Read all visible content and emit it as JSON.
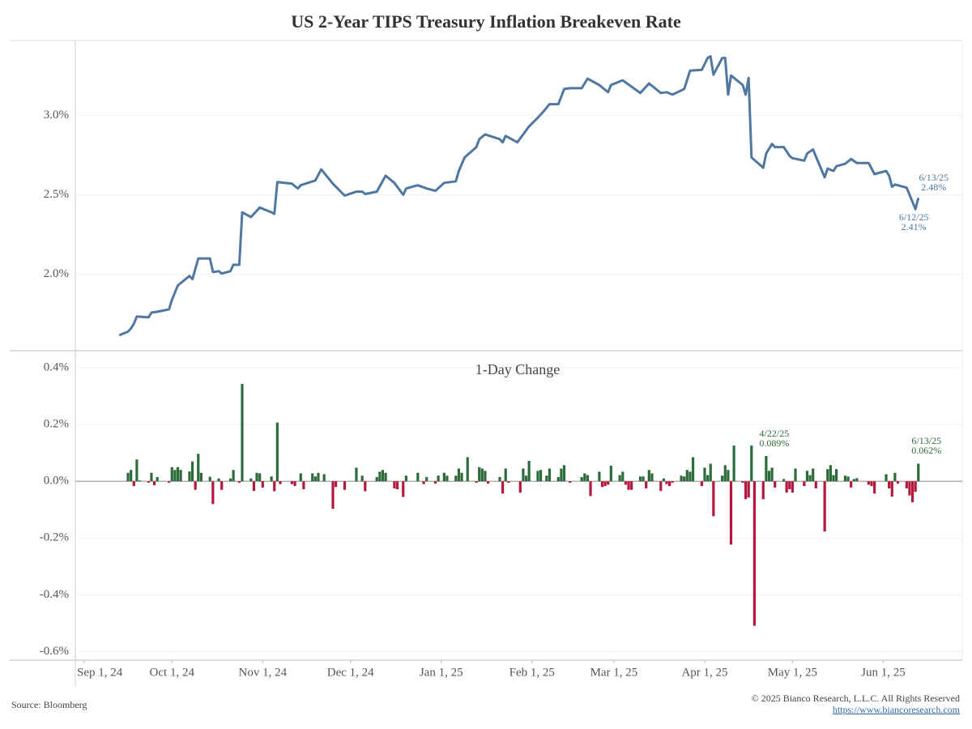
{
  "title": "US 2-Year TIPS Treasury Inflation Breakeven Rate",
  "source": "Source: Bloomberg",
  "copyright": "© 2025 Bianco Research, L.L.C. All Rights Reserved",
  "url": "https://www.biancoresearch.com",
  "chart_data": [
    {
      "type": "line",
      "color": "#4f77a0",
      "xlim": [
        "2024-08-29",
        "2025-06-28"
      ],
      "ylim": [
        1.52,
        3.47
      ],
      "yticks": [
        {
          "value": 2,
          "label": "2.0%"
        },
        {
          "value": 2.5,
          "label": "2.5%"
        },
        {
          "value": 3,
          "label": "3.0%"
        }
      ],
      "grid": true,
      "x": [
        "2024-09-13",
        "2024-09-16",
        "2024-09-17",
        "2024-09-18",
        "2024-09-19",
        "2024-09-23",
        "2024-09-24",
        "2024-09-26",
        "2024-09-30",
        "2024-10-01",
        "2024-10-03",
        "2024-10-07",
        "2024-10-08",
        "2024-10-10",
        "2024-10-14",
        "2024-10-15",
        "2024-10-17",
        "2024-10-18",
        "2024-10-21",
        "2024-10-22",
        "2024-10-24",
        "2024-10-25",
        "2024-10-28",
        "2024-10-31",
        "2024-11-04",
        "2024-11-05",
        "2024-11-06",
        "2024-11-11",
        "2024-11-13",
        "2024-11-14",
        "2024-11-19",
        "2024-11-21",
        "2024-11-25",
        "2024-11-29",
        "2024-12-03",
        "2024-12-05",
        "2024-12-06",
        "2024-12-10",
        "2024-12-13",
        "2024-12-16",
        "2024-12-19",
        "2024-12-20",
        "2024-12-24",
        "2024-12-27",
        "2024-12-30",
        "2025-01-02",
        "2025-01-06",
        "2025-01-07",
        "2025-01-09",
        "2025-01-13",
        "2025-01-14",
        "2025-01-16",
        "2025-01-21",
        "2025-01-22",
        "2025-01-23",
        "2025-01-27",
        "2025-01-31",
        "2025-02-03",
        "2025-02-05",
        "2025-02-07",
        "2025-02-10",
        "2025-02-12",
        "2025-02-14",
        "2025-02-18",
        "2025-02-20",
        "2025-02-24",
        "2025-02-27",
        "2025-02-28",
        "2025-03-04",
        "2025-03-10",
        "2025-03-13",
        "2025-03-17",
        "2025-03-19",
        "2025-03-21",
        "2025-03-25",
        "2025-03-27",
        "2025-03-31",
        "2025-04-02",
        "2025-04-03",
        "2025-04-04",
        "2025-04-07",
        "2025-04-08",
        "2025-04-09",
        "2025-04-10",
        "2025-04-14",
        "2025-04-15",
        "2025-04-16",
        "2025-04-17",
        "2025-04-21",
        "2025-04-22",
        "2025-04-24",
        "2025-04-25",
        "2025-04-28",
        "2025-04-30",
        "2025-05-01",
        "2025-05-05",
        "2025-05-06",
        "2025-05-08",
        "2025-05-12",
        "2025-05-13",
        "2025-05-15",
        "2025-05-16",
        "2025-05-19",
        "2025-05-21",
        "2025-05-23",
        "2025-05-27",
        "2025-05-29",
        "2025-06-02",
        "2025-06-03",
        "2025-06-04",
        "2025-06-05",
        "2025-06-09",
        "2025-06-12",
        "2025-06-13"
      ],
      "values": [
        1.617,
        1.64,
        1.66,
        1.69,
        1.735,
        1.73,
        1.76,
        1.765,
        1.78,
        1.84,
        1.93,
        1.99,
        1.97,
        2.1,
        2.1,
        2.015,
        2.02,
        2.005,
        2.02,
        2.06,
        2.06,
        2.39,
        2.36,
        2.42,
        2.39,
        2.38,
        2.58,
        2.57,
        2.54,
        2.56,
        2.59,
        2.66,
        2.57,
        2.495,
        2.52,
        2.52,
        2.505,
        2.52,
        2.62,
        2.575,
        2.5,
        2.54,
        2.56,
        2.54,
        2.525,
        2.575,
        2.585,
        2.65,
        2.735,
        2.8,
        2.85,
        2.88,
        2.85,
        2.83,
        2.87,
        2.83,
        2.93,
        2.985,
        3.025,
        3.07,
        3.07,
        3.165,
        3.17,
        3.17,
        3.23,
        3.19,
        3.145,
        3.19,
        3.22,
        3.14,
        3.2,
        3.14,
        3.145,
        3.13,
        3.165,
        3.28,
        3.285,
        3.36,
        3.37,
        3.255,
        3.36,
        3.36,
        3.13,
        3.25,
        3.19,
        3.13,
        3.235,
        2.735,
        2.67,
        2.76,
        2.82,
        2.8,
        2.8,
        2.745,
        2.73,
        2.715,
        2.76,
        2.785,
        2.61,
        2.665,
        2.65,
        2.68,
        2.695,
        2.725,
        2.7,
        2.7,
        2.63,
        2.65,
        2.62,
        2.55,
        2.565,
        2.545,
        2.41,
        2.48
      ],
      "annotations": [
        {
          "date": "6/13/25",
          "label": "2.48%"
        },
        {
          "date": "6/12/25",
          "label": "2.41%"
        }
      ]
    },
    {
      "type": "bar",
      "title": "1-Day Change",
      "up_color": "#2e6b3a",
      "down_color": "#b5183e",
      "xlim": [
        "2024-08-29",
        "2025-06-28"
      ],
      "xticks": [
        {
          "value": "2024-09-01",
          "label": "Sep 1, 24"
        },
        {
          "value": "2024-10-01",
          "label": "Oct 1, 24"
        },
        {
          "value": "2024-11-01",
          "label": "Nov 1, 24"
        },
        {
          "value": "2024-12-01",
          "label": "Dec 1, 24"
        },
        {
          "value": "2025-01-01",
          "label": "Jan 1, 25"
        },
        {
          "value": "2025-02-01",
          "label": "Feb 1, 25"
        },
        {
          "value": "2025-03-01",
          "label": "Mar 1, 25"
        },
        {
          "value": "2025-04-01",
          "label": "Apr 1, 25"
        },
        {
          "value": "2025-05-01",
          "label": "May 1, 25"
        },
        {
          "value": "2025-06-01",
          "label": "Jun 1, 25"
        }
      ],
      "ylim": [
        -0.63,
        0.46
      ],
      "yticks": [
        {
          "value": -0.6,
          "label": "-0.6%"
        },
        {
          "value": -0.4,
          "label": "-0.4%"
        },
        {
          "value": -0.2,
          "label": "-0.2%"
        },
        {
          "value": 0,
          "label": "0.0%"
        },
        {
          "value": 0.2,
          "label": "0.2%"
        },
        {
          "value": 0.4,
          "label": "0.4%"
        }
      ],
      "grid": true,
      "x": [
        "2024-09-16",
        "2024-09-17",
        "2024-09-18",
        "2024-09-19",
        "2024-09-20",
        "2024-09-23",
        "2024-09-24",
        "2024-09-25",
        "2024-09-26",
        "2024-09-30",
        "2024-10-01",
        "2024-10-02",
        "2024-10-03",
        "2024-10-04",
        "2024-10-07",
        "2024-10-08",
        "2024-10-09",
        "2024-10-10",
        "2024-10-11",
        "2024-10-14",
        "2024-10-15",
        "2024-10-17",
        "2024-10-18",
        "2024-10-21",
        "2024-10-22",
        "2024-10-24",
        "2024-10-25",
        "2024-10-28",
        "2024-10-29",
        "2024-10-30",
        "2024-10-31",
        "2024-11-01",
        "2024-11-04",
        "2024-11-05",
        "2024-11-06",
        "2024-11-07",
        "2024-11-11",
        "2024-11-12",
        "2024-11-14",
        "2024-11-15",
        "2024-11-18",
        "2024-11-19",
        "2024-11-20",
        "2024-11-22",
        "2024-11-25",
        "2024-11-26",
        "2024-11-29",
        "2024-12-03",
        "2024-12-05",
        "2024-12-06",
        "2024-12-10",
        "2024-12-11",
        "2024-12-12",
        "2024-12-13",
        "2024-12-16",
        "2024-12-17",
        "2024-12-19",
        "2024-12-20",
        "2024-12-24",
        "2024-12-26",
        "2024-12-27",
        "2024-12-30",
        "2024-12-31",
        "2025-01-02",
        "2025-01-03",
        "2025-01-06",
        "2025-01-07",
        "2025-01-08",
        "2025-01-10",
        "2025-01-13",
        "2025-01-14",
        "2025-01-15",
        "2025-01-16",
        "2025-01-17",
        "2025-01-21",
        "2025-01-22",
        "2025-01-23",
        "2025-01-24",
        "2025-01-28",
        "2025-01-29",
        "2025-01-30",
        "2025-01-31",
        "2025-02-03",
        "2025-02-04",
        "2025-02-06",
        "2025-02-07",
        "2025-02-10",
        "2025-02-11",
        "2025-02-12",
        "2025-02-14",
        "2025-02-18",
        "2025-02-19",
        "2025-02-20",
        "2025-02-21",
        "2025-02-24",
        "2025-02-25",
        "2025-02-26",
        "2025-02-27",
        "2025-02-28",
        "2025-03-03",
        "2025-03-04",
        "2025-03-05",
        "2025-03-06",
        "2025-03-07",
        "2025-03-10",
        "2025-03-11",
        "2025-03-12",
        "2025-03-13",
        "2025-03-14",
        "2025-03-17",
        "2025-03-18",
        "2025-03-19",
        "2025-03-20",
        "2025-03-21",
        "2025-03-24",
        "2025-03-25",
        "2025-03-26",
        "2025-03-27",
        "2025-03-28",
        "2025-03-31",
        "2025-04-01",
        "2025-04-02",
        "2025-04-03",
        "2025-04-04",
        "2025-04-07",
        "2025-04-08",
        "2025-04-09",
        "2025-04-10",
        "2025-04-11",
        "2025-04-14",
        "2025-04-15",
        "2025-04-16",
        "2025-04-17",
        "2025-04-18",
        "2025-04-21",
        "2025-04-22",
        "2025-04-23",
        "2025-04-24",
        "2025-04-25",
        "2025-04-28",
        "2025-04-29",
        "2025-04-30",
        "2025-05-01",
        "2025-05-02",
        "2025-05-05",
        "2025-05-06",
        "2025-05-07",
        "2025-05-08",
        "2025-05-09",
        "2025-05-12",
        "2025-05-13",
        "2025-05-14",
        "2025-05-15",
        "2025-05-16",
        "2025-05-19",
        "2025-05-20",
        "2025-05-21",
        "2025-05-22",
        "2025-05-23",
        "2025-05-27",
        "2025-05-28",
        "2025-05-29",
        "2025-06-02",
        "2025-06-03",
        "2025-06-04",
        "2025-06-05",
        "2025-06-06",
        "2025-06-09",
        "2025-06-10",
        "2025-06-11",
        "2025-06-12",
        "2025-06-13"
      ],
      "values": [
        0.03,
        0.04,
        -0.017,
        0.077,
        0.003,
        -0.005,
        0.03,
        -0.014,
        0.015,
        -0.005,
        0.05,
        0.04,
        0.05,
        0.04,
        0.035,
        0.07,
        -0.03,
        0.097,
        0.03,
        0.016,
        -0.08,
        0.01,
        -0.03,
        0.01,
        0.04,
        -0.005,
        0.343,
        0.01,
        -0.034,
        0.03,
        0.028,
        -0.022,
        0.017,
        -0.035,
        0.207,
        -0.01,
        -0.01,
        -0.017,
        0.028,
        -0.028,
        0.028,
        0.017,
        0.03,
        0.025,
        -0.097,
        -0.02,
        -0.03,
        0.048,
        0.02,
        -0.035,
        0.015,
        0.034,
        0.04,
        0.03,
        -0.025,
        -0.028,
        -0.055,
        0.02,
        0.03,
        -0.01,
        0.015,
        -0.008,
        0.02,
        0.03,
        0.02,
        0.02,
        0.045,
        0.03,
        0.085,
        -0.005,
        0.05,
        0.045,
        0.037,
        -0.008,
        0.015,
        -0.043,
        0.045,
        -0.005,
        -0.04,
        0.045,
        0.02,
        0.072,
        0.037,
        0.04,
        0.02,
        0.045,
        0.015,
        0.045,
        0.057,
        -0.005,
        0.015,
        0.028,
        0.022,
        -0.052,
        0.034,
        -0.02,
        -0.017,
        -0.012,
        0.055,
        0.022,
        0.034,
        -0.012,
        -0.03,
        -0.03,
        0.017,
        0.017,
        -0.025,
        0.04,
        0.028,
        -0.034,
        0.01,
        -0.01,
        -0.017,
        -0.005,
        0.02,
        0.017,
        0.04,
        0.034,
        0.085,
        -0.017,
        0.048,
        0.022,
        0.062,
        -0.123,
        0.02,
        0.057,
        0.04,
        -0.223,
        0.126,
        -0.005,
        -0.063,
        -0.057,
        0.126,
        -0.509,
        -0.063,
        0.089,
        0.037,
        0.048,
        -0.022,
        0.008,
        -0.04,
        -0.028,
        -0.04,
        0.045,
        -0.017,
        0.037,
        0.022,
        0.045,
        -0.025,
        -0.177,
        0.043,
        0.057,
        0.022,
        0.043,
        0.02,
        0.017,
        -0.022,
        0.008,
        0.011,
        -0.012,
        -0.017,
        -0.043,
        0.025,
        -0.025,
        -0.054,
        0.03,
        -0.008,
        -0.025,
        -0.05,
        -0.074,
        -0.037,
        0.062
      ],
      "annotations": [
        {
          "date": "4/22/25",
          "label": "0.089%"
        },
        {
          "date": "6/13/25",
          "label": "0.062%"
        }
      ]
    }
  ]
}
